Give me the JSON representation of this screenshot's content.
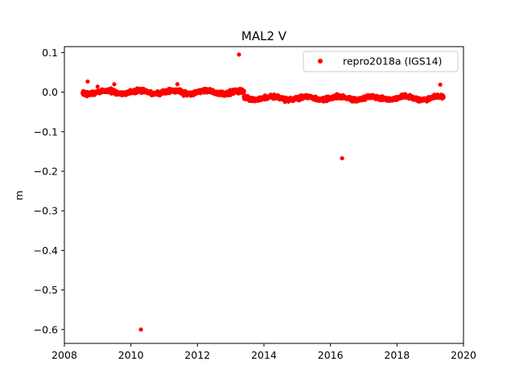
{
  "chart_data": {
    "type": "scatter",
    "title": "MAL2 V",
    "xlabel": "",
    "ylabel": "m",
    "xlim": [
      2008,
      2020
    ],
    "ylim": [
      -0.635,
      0.115
    ],
    "xticks": [
      2008,
      2010,
      2012,
      2014,
      2016,
      2018,
      2020
    ],
    "yticks": [
      0.1,
      0.0,
      -0.1,
      -0.2,
      -0.3,
      -0.4,
      -0.5,
      -0.6
    ],
    "ytick_labels": [
      "0.1",
      "0.0",
      "−0.1",
      "−0.2",
      "−0.3",
      "−0.4",
      "−0.5",
      "−0.6"
    ],
    "grid": false,
    "legend_position": "top-right",
    "series": [
      {
        "name": "repro2018a (IGS14)",
        "color": "#ff0000",
        "marker": "circle",
        "dense_segments": [
          {
            "x_start": 2008.55,
            "x_end": 2013.4,
            "y_center": 0.0,
            "spread": 0.008
          },
          {
            "x_start": 2013.4,
            "x_end": 2019.4,
            "y_center": -0.015,
            "spread": 0.007
          }
        ],
        "outliers": [
          {
            "x": 2008.7,
            "y": 0.027
          },
          {
            "x": 2009.0,
            "y": 0.014
          },
          {
            "x": 2009.5,
            "y": 0.02
          },
          {
            "x": 2011.4,
            "y": 0.02
          },
          {
            "x": 2013.25,
            "y": 0.095
          },
          {
            "x": 2016.35,
            "y": -0.167
          },
          {
            "x": 2019.3,
            "y": 0.019
          },
          {
            "x": 2010.3,
            "y": -0.6
          }
        ]
      }
    ]
  }
}
